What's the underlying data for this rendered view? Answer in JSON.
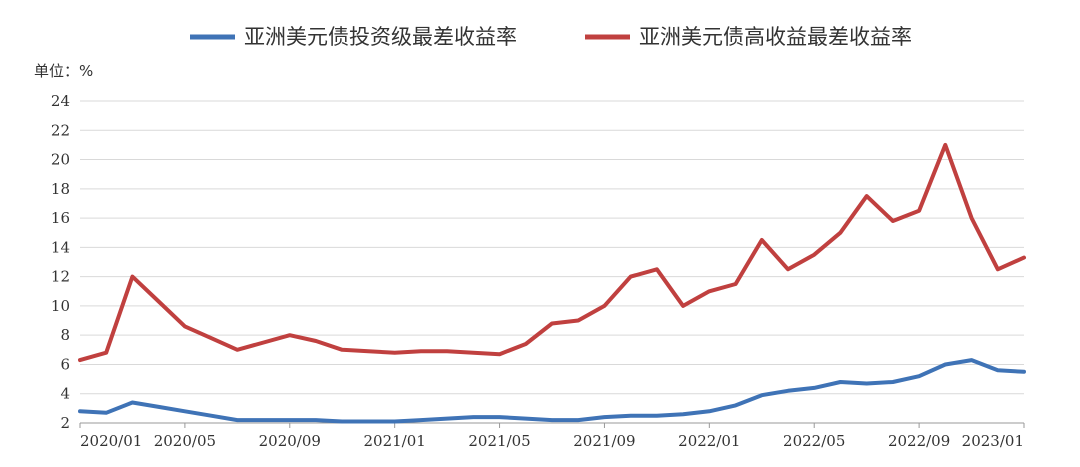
{
  "chart_data": {
    "type": "line",
    "unit_label": "单位：%",
    "x_tick_labels": [
      "2020/01",
      "2020/05",
      "2020/09",
      "2021/01",
      "2021/05",
      "2021/09",
      "2022/01",
      "2022/05",
      "2022/09",
      "2023/01"
    ],
    "ylim": [
      2,
      24
    ],
    "y_ticks": [
      2,
      4,
      6,
      8,
      10,
      12,
      14,
      16,
      18,
      20,
      22,
      24
    ],
    "grid": true,
    "legend_position": "top",
    "series": [
      {
        "name": "亚洲美元债投资级最差收益率",
        "color": "#3f73b6",
        "x": [
          "2020/01",
          "2020/02",
          "2020/03",
          "2020/04",
          "2020/05",
          "2020/06",
          "2020/07",
          "2020/08",
          "2020/09",
          "2020/10",
          "2020/11",
          "2020/12",
          "2021/01",
          "2021/02",
          "2021/03",
          "2021/04",
          "2021/05",
          "2021/06",
          "2021/07",
          "2021/08",
          "2021/09",
          "2021/10",
          "2021/11",
          "2021/12",
          "2022/01",
          "2022/02",
          "2022/03",
          "2022/04",
          "2022/05",
          "2022/06",
          "2022/07",
          "2022/08",
          "2022/09",
          "2022/10",
          "2022/11",
          "2022/12",
          "2023/01"
        ],
        "values": [
          2.8,
          2.7,
          3.4,
          3.1,
          2.8,
          2.5,
          2.2,
          2.2,
          2.2,
          2.2,
          2.1,
          2.1,
          2.1,
          2.2,
          2.3,
          2.4,
          2.4,
          2.3,
          2.2,
          2.2,
          2.4,
          2.5,
          2.5,
          2.6,
          2.8,
          3.2,
          3.9,
          4.2,
          4.4,
          4.8,
          4.7,
          4.8,
          5.2,
          6.0,
          6.3,
          5.6,
          5.5
        ]
      },
      {
        "name": "亚洲美元债高收益最差收益率",
        "color": "#c0403f",
        "x": [
          "2020/01",
          "2020/02",
          "2020/03",
          "2020/04",
          "2020/05",
          "2020/06",
          "2020/07",
          "2020/08",
          "2020/09",
          "2020/10",
          "2020/11",
          "2020/12",
          "2021/01",
          "2021/02",
          "2021/03",
          "2021/04",
          "2021/05",
          "2021/06",
          "2021/07",
          "2021/08",
          "2021/09",
          "2021/10",
          "2021/11",
          "2021/12",
          "2022/01",
          "2022/02",
          "2022/03",
          "2022/04",
          "2022/05",
          "2022/06",
          "2022/07",
          "2022/08",
          "2022/09",
          "2022/10",
          "2022/11",
          "2022/12",
          "2023/01"
        ],
        "values": [
          6.3,
          6.8,
          12.0,
          10.3,
          8.6,
          7.8,
          7.0,
          7.5,
          8.0,
          7.6,
          7.0,
          6.9,
          6.8,
          6.9,
          6.9,
          6.8,
          6.7,
          7.4,
          8.8,
          9.0,
          10.0,
          12.0,
          12.5,
          10.0,
          11.0,
          11.5,
          14.5,
          12.5,
          13.5,
          15.0,
          17.5,
          15.8,
          16.5,
          21.0,
          16.0,
          12.5,
          13.3
        ]
      }
    ]
  }
}
